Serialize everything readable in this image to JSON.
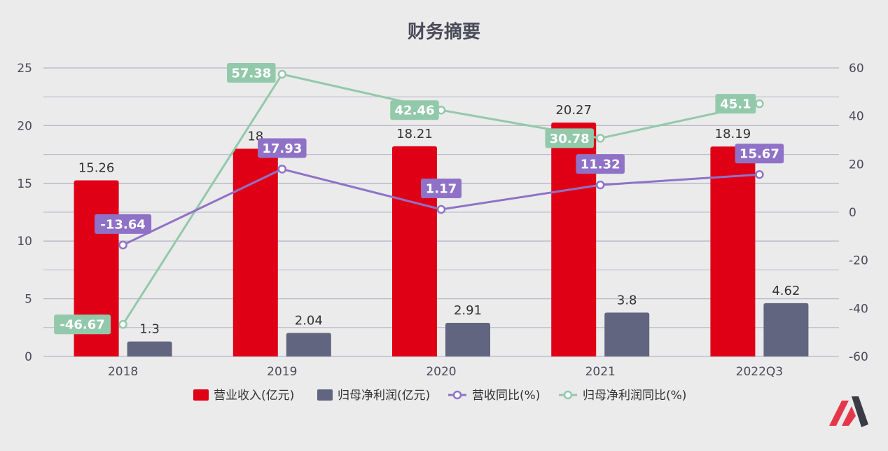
{
  "colors": {
    "revenue": "#e00016",
    "profit": "#62657f",
    "revenue_yoy": "#8f72c7",
    "profit_yoy": "#93c9ab",
    "grid": "#b6b6c8",
    "logo_red": "#e5374b",
    "logo_dark": "#3b3b47"
  },
  "chart_data": {
    "type": "bar",
    "title": "财务摘要",
    "categories": [
      "2018",
      "2019",
      "2020",
      "2021",
      "2022Q3"
    ],
    "y_left": {
      "min": 0,
      "max": 25,
      "ticks": [
        "0",
        "5",
        "10",
        "15",
        "20",
        "25"
      ]
    },
    "y_right": {
      "min": -60,
      "max": 60,
      "ticks": [
        "-60",
        "-40",
        "-20",
        "0",
        "20",
        "40",
        "60"
      ]
    },
    "grid": true,
    "legend_position": "bottom",
    "series": [
      {
        "name": "营业收入(亿元)",
        "type": "bar",
        "axis": "left",
        "values": [
          15.26,
          18,
          18.21,
          20.27,
          18.19
        ],
        "labels": [
          "15.26",
          "18",
          "18.21",
          "20.27",
          "18.19"
        ]
      },
      {
        "name": "归母净利润(亿元)",
        "type": "bar",
        "axis": "left",
        "values": [
          1.3,
          2.04,
          2.91,
          3.8,
          4.62
        ],
        "labels": [
          "1.3",
          "2.04",
          "2.91",
          "3.8",
          "4.62"
        ]
      },
      {
        "name": "营收同比(%)",
        "type": "line",
        "axis": "right",
        "values": [
          -13.64,
          17.93,
          1.17,
          11.32,
          15.67
        ],
        "labels": [
          "-13.64",
          "17.93",
          "1.17",
          "11.32",
          "15.67"
        ]
      },
      {
        "name": "归母净利润同比(%)",
        "type": "line",
        "axis": "right",
        "values": [
          -46.67,
          57.38,
          42.46,
          30.78,
          45.1
        ],
        "labels": [
          "-46.67",
          "57.38",
          "42.46",
          "30.78",
          "45.1"
        ]
      }
    ]
  },
  "logo": {
    "icon": "mm-logo-icon"
  }
}
